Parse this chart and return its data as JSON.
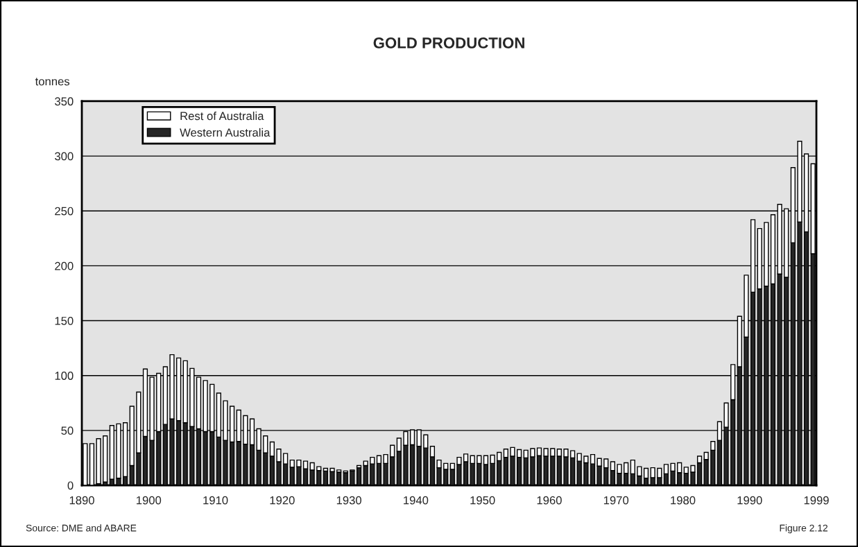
{
  "chart_data": {
    "type": "bar",
    "title": "GOLD PRODUCTION",
    "ylabel": "tonnes",
    "annotations": [
      "Source: DME and ABARE",
      "Figure 2.12"
    ],
    "x": [
      1890,
      1891,
      1892,
      1893,
      1894,
      1895,
      1896,
      1897,
      1898,
      1899,
      1900,
      1901,
      1902,
      1903,
      1904,
      1905,
      1906,
      1907,
      1908,
      1909,
      1910,
      1911,
      1912,
      1913,
      1914,
      1915,
      1916,
      1917,
      1918,
      1919,
      1920,
      1921,
      1922,
      1923,
      1924,
      1925,
      1926,
      1927,
      1928,
      1929,
      1930,
      1931,
      1932,
      1933,
      1934,
      1935,
      1936,
      1937,
      1938,
      1939,
      1940,
      1941,
      1942,
      1943,
      1944,
      1945,
      1946,
      1947,
      1948,
      1949,
      1950,
      1951,
      1952,
      1953,
      1954,
      1955,
      1956,
      1957,
      1958,
      1959,
      1960,
      1961,
      1962,
      1963,
      1964,
      1965,
      1966,
      1967,
      1968,
      1969,
      1970,
      1971,
      1972,
      1973,
      1974,
      1975,
      1976,
      1977,
      1978,
      1979,
      1980,
      1981,
      1982,
      1983,
      1984,
      1985,
      1986,
      1987,
      1988,
      1989,
      1990,
      1991,
      1992,
      1993,
      1994,
      1995,
      1996,
      1997,
      1998,
      1999
    ],
    "stacked": true,
    "series": [
      {
        "name": "Western Australia",
        "color": "#262626",
        "values": [
          0,
          null,
          1.5,
          3,
          5.5,
          6.5,
          8,
          18,
          29.5,
          44.5,
          41,
          49,
          55.5,
          60.5,
          59,
          57,
          53.5,
          51.5,
          49,
          49,
          44,
          41,
          39.5,
          40,
          37.5,
          37,
          32,
          29.5,
          26.5,
          21.5,
          19.5,
          16.5,
          17,
          15,
          14,
          13.5,
          13,
          12.5,
          12,
          11.5,
          13,
          16,
          18,
          19.5,
          20,
          20,
          26,
          31,
          36.5,
          37,
          35.5,
          34,
          26,
          16,
          14.5,
          14.5,
          19,
          21.5,
          20,
          20,
          19,
          20,
          22.5,
          25.5,
          26.5,
          25.5,
          25,
          26,
          27,
          26.5,
          26.5,
          26.5,
          26,
          25,
          22,
          20.5,
          19.5,
          17.5,
          16,
          13.5,
          11,
          11,
          10.5,
          8.5,
          6.5,
          7,
          7,
          10.5,
          13,
          11.5,
          11,
          12,
          20.5,
          23.5,
          32,
          41,
          53,
          78,
          108,
          135,
          176,
          179,
          181.5,
          183.5,
          192.5,
          189.5,
          221,
          240,
          231,
          211
        ]
      },
      {
        "name": "Rest of Australia",
        "color": "#ffffff",
        "values": [
          38,
          38,
          41,
          42,
          49,
          49.5,
          49,
          54,
          55.5,
          61.5,
          57.5,
          53,
          52.5,
          58.5,
          57,
          56.5,
          53,
          47,
          46.5,
          43,
          40,
          36,
          32.5,
          28.5,
          26,
          23.5,
          19.5,
          15.5,
          13,
          11.5,
          9.5,
          6.5,
          6,
          7,
          6.5,
          3.5,
          2.5,
          3,
          2,
          1.5,
          1,
          2,
          4,
          6,
          7,
          8,
          10.5,
          12,
          12.5,
          13.5,
          15,
          12,
          9.5,
          7,
          5.5,
          5.5,
          6.5,
          7,
          7,
          7,
          8,
          7.5,
          7.5,
          7.5,
          8,
          7,
          7,
          7.5,
          7,
          7,
          7,
          6.5,
          7,
          6.5,
          7,
          6,
          8.5,
          7,
          8,
          8,
          8,
          9.5,
          12.5,
          8.5,
          9,
          9,
          8.5,
          8.5,
          7,
          9,
          5.5,
          6,
          6,
          6.5,
          8,
          17,
          22,
          32,
          46,
          56.5,
          66,
          55,
          58,
          63,
          63.5,
          62.5,
          68.5,
          73.5,
          71,
          82
        ]
      }
    ],
    "xlim": [
      1889.5,
      1999.5
    ],
    "xticks": [
      {
        "value": 1889.5,
        "label": "1890"
      },
      {
        "value": 1899.5,
        "label": "1900"
      },
      {
        "value": 1909.5,
        "label": "1910"
      },
      {
        "value": 1919.5,
        "label": "1920"
      },
      {
        "value": 1929.5,
        "label": "1930"
      },
      {
        "value": 1939.5,
        "label": "1940"
      },
      {
        "value": 1949.5,
        "label": "1950"
      },
      {
        "value": 1959.5,
        "label": "1960"
      },
      {
        "value": 1969.5,
        "label": "1970"
      },
      {
        "value": 1979.5,
        "label": "1980"
      },
      {
        "value": 1989.5,
        "label": "1990"
      },
      {
        "value": 1999.5,
        "label": "1999"
      }
    ],
    "ylim": [
      0,
      350
    ],
    "yticks": [
      0,
      50,
      100,
      150,
      200,
      250,
      300,
      350
    ],
    "grid": "y",
    "legend": "top left"
  }
}
